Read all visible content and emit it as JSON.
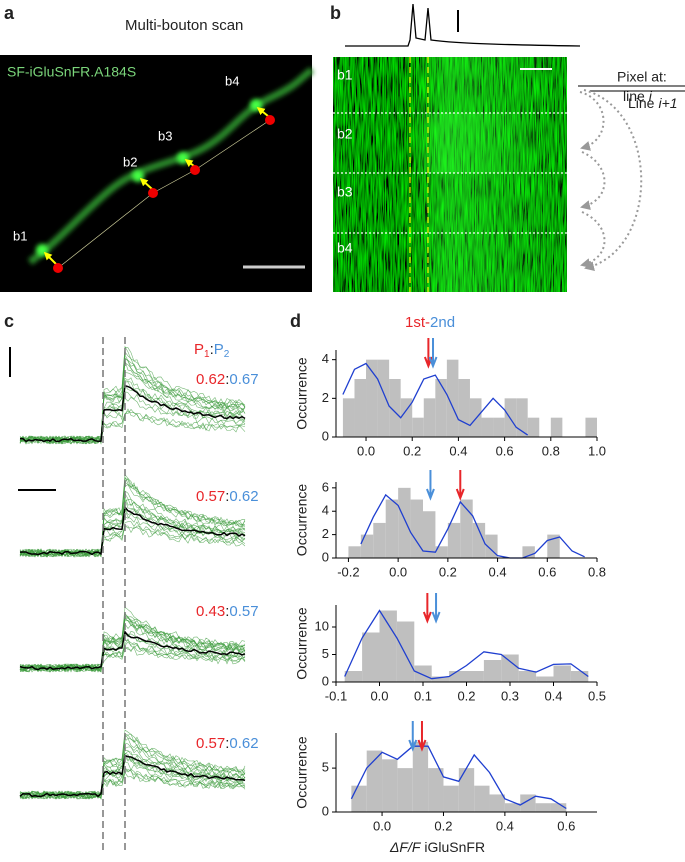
{
  "panel_a": {
    "label": "a",
    "title": "Multi-bouton scan",
    "indicator": "SF-iGluSnFR.A184S",
    "boutons": [
      "b1",
      "b2",
      "b3",
      "b4"
    ]
  },
  "panel_b": {
    "label": "b",
    "rows": [
      "b1",
      "b2",
      "b3",
      "b4"
    ],
    "pixel_at": "Pixel at:",
    "line_word": "line",
    "line_word2": "Line",
    "line_i": "i",
    "line_i1": "i+1"
  },
  "panel_c": {
    "label": "c",
    "header": {
      "p": "P",
      "sub1": "1",
      "sep": ":",
      "sub2": "2"
    },
    "ratios": [
      [
        0.62,
        0.67
      ],
      [
        0.57,
        0.62
      ],
      [
        0.43,
        0.57
      ],
      [
        0.57,
        0.62
      ]
    ]
  },
  "panel_d": {
    "label": "d",
    "first": "1st",
    "dash": "-",
    "second": "2nd",
    "ylabel": "Occurrence",
    "xlabel_italic": "ΔF/F",
    "xlabel_rest": "iGluSnFR"
  },
  "chart_data": [
    {
      "type": "histogram",
      "color": "#bfbfbf",
      "xlim": [
        -0.13,
        1.0
      ],
      "ylim": [
        0,
        4.5
      ],
      "xticks": [
        {
          "value": 0,
          "label": "0.0"
        },
        0.2,
        0.4,
        0.6,
        0.8,
        {
          "value": 1,
          "label": "1.0"
        }
      ],
      "yticks": [
        0,
        2,
        4
      ],
      "bins": [
        -0.1,
        -0.05,
        0,
        0.05,
        0.1,
        0.15,
        0.2,
        0.25,
        0.3,
        0.35,
        0.4,
        0.45,
        0.5,
        0.55,
        0.6,
        0.65,
        0.7,
        0.75,
        0.8,
        0.85,
        0.9,
        0.95,
        1.0
      ],
      "values": [
        2,
        3,
        4,
        4,
        3,
        2,
        1,
        2,
        3,
        4,
        3,
        2,
        1,
        1,
        2,
        2,
        1,
        0,
        1,
        0,
        0,
        1
      ],
      "fit": {
        "color": "#1f3fd0",
        "x": [
          -0.1,
          -0.05,
          0,
          0.05,
          0.1,
          0.15,
          0.2,
          0.25,
          0.3,
          0.35,
          0.4,
          0.45,
          0.5,
          0.55,
          0.6,
          0.65,
          0.7
        ],
        "y": [
          2.2,
          3.5,
          3.8,
          3.0,
          1.6,
          1.0,
          1.8,
          3.0,
          3.2,
          2.2,
          0.9,
          0.6,
          1.3,
          2.0,
          1.4,
          0.5,
          0.1
        ]
      },
      "arrows": [
        {
          "x": 0.27,
          "color": "#e8262a"
        },
        {
          "x": 0.29,
          "color": "#4a8fd9"
        }
      ]
    },
    {
      "type": "histogram",
      "color": "#bfbfbf",
      "xlim": [
        -0.25,
        0.8
      ],
      "ylim": [
        0,
        6.5
      ],
      "xticks": [
        -0.2,
        {
          "value": 0,
          "label": "0.0"
        },
        0.2,
        0.4,
        0.6,
        0.8
      ],
      "yticks": [
        0,
        2,
        4,
        6
      ],
      "bins": [
        -0.2,
        -0.15,
        -0.1,
        -0.05,
        0,
        0.05,
        0.1,
        0.15,
        0.2,
        0.25,
        0.3,
        0.35,
        0.4,
        0.45,
        0.5,
        0.55,
        0.6,
        0.65,
        0.7
      ],
      "values": [
        1,
        2,
        3,
        5,
        6,
        5,
        4,
        1,
        3,
        5,
        3,
        2,
        0,
        0,
        1,
        0,
        2,
        0
      ],
      "fit": {
        "color": "#1f3fd0",
        "x": [
          -0.15,
          -0.1,
          -0.05,
          0,
          0.05,
          0.1,
          0.15,
          0.2,
          0.25,
          0.3,
          0.35,
          0.4,
          0.45,
          0.5,
          0.55,
          0.6,
          0.65,
          0.7,
          0.75
        ],
        "y": [
          1.2,
          3.5,
          5.4,
          4.5,
          2.2,
          0.6,
          0.5,
          2.5,
          4.8,
          3.6,
          1.2,
          0.2,
          0,
          0,
          0.4,
          1.5,
          1.8,
          0.6,
          0.1
        ]
      },
      "arrows": [
        {
          "x": 0.13,
          "color": "#4a8fd9"
        },
        {
          "x": 0.25,
          "color": "#e8262a"
        }
      ]
    },
    {
      "type": "histogram",
      "color": "#bfbfbf",
      "xlim": [
        -0.1,
        0.5
      ],
      "ylim": [
        0,
        14
      ],
      "xticks": [
        -0.1,
        {
          "value": 0,
          "label": "0.0"
        },
        0.1,
        0.2,
        0.3,
        0.4,
        0.5
      ],
      "yticks": [
        0,
        5,
        10
      ],
      "bins": [
        -0.08,
        -0.04,
        0,
        0.04,
        0.08,
        0.12,
        0.16,
        0.2,
        0.24,
        0.28,
        0.32,
        0.36,
        0.4,
        0.44,
        0.48
      ],
      "values": [
        2,
        9,
        13,
        11,
        3,
        1,
        2,
        2,
        4,
        5,
        2,
        1,
        3,
        2
      ],
      "fit": {
        "color": "#1f3fd0",
        "x": [
          -0.08,
          -0.04,
          0,
          0.04,
          0.08,
          0.12,
          0.16,
          0.2,
          0.24,
          0.28,
          0.32,
          0.36,
          0.4,
          0.44,
          0.48
        ],
        "y": [
          1,
          8,
          13,
          8,
          2,
          0.6,
          1,
          3,
          5.5,
          5,
          2.5,
          1.8,
          3.2,
          3.3,
          1
        ]
      },
      "arrows": [
        {
          "x": 0.11,
          "color": "#e8262a"
        },
        {
          "x": 0.13,
          "color": "#4a8fd9"
        }
      ]
    },
    {
      "type": "histogram",
      "color": "#bfbfbf",
      "xlim": [
        -0.15,
        0.7
      ],
      "ylim": [
        0,
        9
      ],
      "xticks": [
        {
          "value": 0,
          "label": "0.0"
        },
        0.2,
        0.4,
        0.6
      ],
      "yticks": [
        0,
        5
      ],
      "bins": [
        -0.1,
        -0.05,
        0,
        0.05,
        0.1,
        0.15,
        0.2,
        0.25,
        0.3,
        0.35,
        0.4,
        0.45,
        0.5,
        0.55,
        0.6
      ],
      "values": [
        3,
        7,
        6,
        5,
        8,
        5,
        3,
        5,
        3,
        2,
        1,
        2,
        1,
        1
      ],
      "fit": {
        "color": "#1f3fd0",
        "x": [
          -0.1,
          -0.05,
          0,
          0.05,
          0.1,
          0.15,
          0.2,
          0.25,
          0.3,
          0.35,
          0.4,
          0.45,
          0.5,
          0.55,
          0.6
        ],
        "y": [
          1.5,
          5,
          6.8,
          6,
          7.5,
          7.5,
          4,
          3.5,
          6.5,
          4.5,
          1.5,
          0.8,
          1.8,
          1.5,
          0.4
        ]
      },
      "arrows": [
        {
          "x": 0.1,
          "color": "#4a8fd9"
        },
        {
          "x": 0.13,
          "color": "#e8262a"
        }
      ]
    }
  ]
}
